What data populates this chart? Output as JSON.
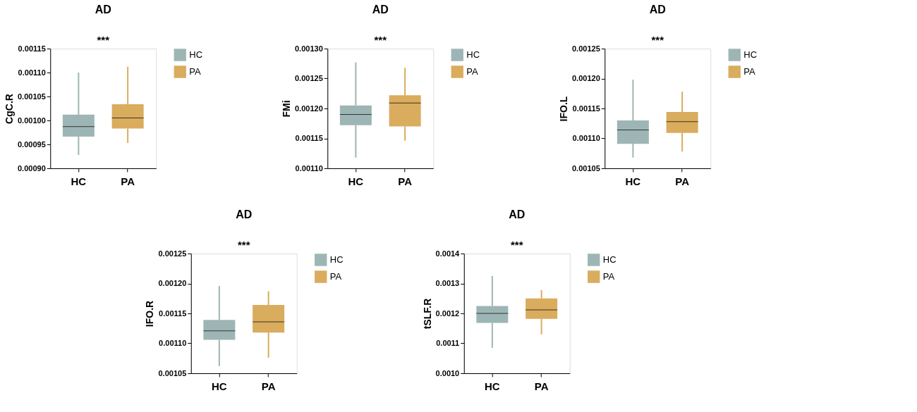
{
  "chart_data": [
    {
      "type": "box",
      "title": "AD",
      "ylabel": "CgC.R",
      "categories": [
        "HC",
        "PA"
      ],
      "legend": "top right",
      "annotations": [
        "***"
      ],
      "ylim": [
        0.0009,
        0.00115
      ],
      "yticks": [
        {
          "value": 0.0009,
          "label": "0.00090"
        },
        {
          "value": 0.00095,
          "label": "0.00095"
        },
        {
          "value": 0.001,
          "label": "0.00100"
        },
        {
          "value": 0.00105,
          "label": "0.00105"
        },
        {
          "value": 0.0011,
          "label": "0.00110"
        },
        {
          "value": 0.00115,
          "label": "0.00115"
        }
      ],
      "series": [
        {
          "name": "HC",
          "color": "#9db6b5",
          "boxes": [
            {
              "low": 0.000928,
              "q1": 0.000966,
              "median": 0.000987,
              "q3": 0.001012,
              "high": 0.0011
            },
            null
          ]
        },
        {
          "name": "PA",
          "color": "#d9ac5e",
          "boxes": [
            null,
            {
              "low": 0.000953,
              "q1": 0.000983,
              "median": 0.001005,
              "q3": 0.001034,
              "high": 0.001112
            }
          ]
        }
      ]
    },
    {
      "type": "box",
      "title": "AD",
      "ylabel": "FMi",
      "categories": [
        "HC",
        "PA"
      ],
      "legend": "top right",
      "annotations": [
        "***"
      ],
      "ylim": [
        0.0011,
        0.0013
      ],
      "yticks": [
        {
          "value": 0.0011,
          "label": "0.00110"
        },
        {
          "value": 0.00115,
          "label": "0.00115"
        },
        {
          "value": 0.0012,
          "label": "0.00120"
        },
        {
          "value": 0.00125,
          "label": "0.00125"
        },
        {
          "value": 0.0013,
          "label": "0.00130"
        }
      ],
      "series": [
        {
          "name": "HC",
          "color": "#9db6b5",
          "boxes": [
            {
              "low": 0.001118,
              "q1": 0.001172,
              "median": 0.00119,
              "q3": 0.001205,
              "high": 0.001277
            },
            null
          ]
        },
        {
          "name": "PA",
          "color": "#d9ac5e",
          "boxes": [
            null,
            {
              "low": 0.001146,
              "q1": 0.00117,
              "median": 0.001209,
              "q3": 0.001222,
              "high": 0.001268
            }
          ]
        }
      ]
    },
    {
      "type": "box",
      "title": "AD",
      "ylabel": "IFO.L",
      "categories": [
        "HC",
        "PA"
      ],
      "legend": "top right",
      "annotations": [
        "***"
      ],
      "ylim": [
        0.00105,
        0.00125
      ],
      "yticks": [
        {
          "value": 0.00105,
          "label": "0.00105"
        },
        {
          "value": 0.0011,
          "label": "0.00110"
        },
        {
          "value": 0.00115,
          "label": "0.00115"
        },
        {
          "value": 0.0012,
          "label": "0.00120"
        },
        {
          "value": 0.00125,
          "label": "0.00125"
        }
      ],
      "series": [
        {
          "name": "HC",
          "color": "#9db6b5",
          "boxes": [
            {
              "low": 0.001068,
              "q1": 0.001091,
              "median": 0.001114,
              "q3": 0.00113,
              "high": 0.001198
            },
            null
          ]
        },
        {
          "name": "PA",
          "color": "#d9ac5e",
          "boxes": [
            null,
            {
              "low": 0.001078,
              "q1": 0.001109,
              "median": 0.001128,
              "q3": 0.001144,
              "high": 0.001178
            }
          ]
        }
      ]
    },
    {
      "type": "box",
      "title": "AD",
      "ylabel": "IFO.R",
      "categories": [
        "HC",
        "PA"
      ],
      "legend": "top right",
      "annotations": [
        "***"
      ],
      "ylim": [
        0.00105,
        0.00125
      ],
      "yticks": [
        {
          "value": 0.00105,
          "label": "0.00105"
        },
        {
          "value": 0.0011,
          "label": "0.00110"
        },
        {
          "value": 0.00115,
          "label": "0.00115"
        },
        {
          "value": 0.0012,
          "label": "0.00120"
        },
        {
          "value": 0.00125,
          "label": "0.00125"
        }
      ],
      "series": [
        {
          "name": "HC",
          "color": "#9db6b5",
          "boxes": [
            {
              "low": 0.001062,
              "q1": 0.001106,
              "median": 0.001121,
              "q3": 0.001139,
              "high": 0.001196
            },
            null
          ]
        },
        {
          "name": "PA",
          "color": "#d9ac5e",
          "boxes": [
            null,
            {
              "low": 0.001076,
              "q1": 0.001118,
              "median": 0.001136,
              "q3": 0.001164,
              "high": 0.001187
            }
          ]
        }
      ]
    },
    {
      "type": "box",
      "title": "AD",
      "ylabel": "tSLF.R",
      "categories": [
        "HC",
        "PA"
      ],
      "legend": "top right",
      "annotations": [
        "***"
      ],
      "ylim": [
        0.001,
        0.0014
      ],
      "yticks": [
        {
          "value": 0.001,
          "label": "0.0010"
        },
        {
          "value": 0.0011,
          "label": "0.0011"
        },
        {
          "value": 0.0012,
          "label": "0.0012"
        },
        {
          "value": 0.0013,
          "label": "0.0013"
        },
        {
          "value": 0.0014,
          "label": "0.0014"
        }
      ],
      "series": [
        {
          "name": "HC",
          "color": "#9db6b5",
          "boxes": [
            {
              "low": 0.001085,
              "q1": 0.001168,
              "median": 0.0012,
              "q3": 0.001225,
              "high": 0.001325
            },
            null
          ]
        },
        {
          "name": "PA",
          "color": "#d9ac5e",
          "boxes": [
            null,
            {
              "low": 0.00113,
              "q1": 0.001182,
              "median": 0.001212,
              "q3": 0.00125,
              "high": 0.001278
            }
          ]
        }
      ]
    }
  ]
}
